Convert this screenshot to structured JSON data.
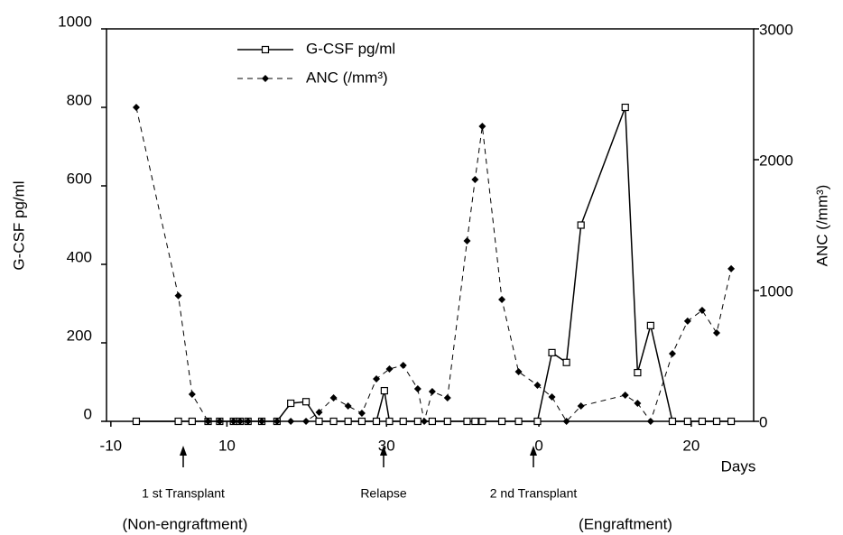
{
  "chart_data": {
    "type": "line",
    "y_label": "G-CSF pg/ml",
    "y2_label": "ANC (/mm³)",
    "x_label": "Days",
    "annotations": [
      "1 st Transplant",
      "Relapse",
      "2 nd Transplant",
      "(Non-engraftment)",
      "(Engraftment)"
    ],
    "xlim": [
      -10.6,
      78.6
    ],
    "xticks": [
      {
        "value": -10,
        "label": "-10"
      },
      {
        "value": 6,
        "label": "10"
      },
      {
        "value": 28,
        "label": "30"
      },
      {
        "value": 49,
        "label": "0"
      },
      {
        "value": 70,
        "label": "20"
      }
    ],
    "ylim": [
      0,
      1000
    ],
    "yticks": [
      0,
      200,
      400,
      600,
      800,
      1000
    ],
    "y2lim": [
      0,
      3000
    ],
    "y2ticks": [
      0,
      1000,
      2000,
      3000
    ],
    "legend": "top-left",
    "series": [
      {
        "name": "G-CSF pg/ml",
        "color": "#000000",
        "marker": "square",
        "dashed": false,
        "x": [
          -6.5,
          -0.7,
          1.2,
          3.4,
          5.0,
          6.9,
          7.8,
          8.9,
          10.8,
          12.9,
          14.8,
          16.9,
          18.7,
          20.7,
          22.7,
          24.6,
          26.6,
          27.7,
          28.4,
          30.3,
          32.3,
          34.3,
          36.4,
          39.1,
          40.2,
          41.2,
          43.9,
          46.2,
          48.8,
          50.8,
          52.8,
          54.8,
          60.9,
          62.6,
          64.4,
          67.4,
          69.5,
          71.5,
          73.5,
          75.5
        ],
        "values": [
          0,
          0,
          0,
          0,
          0,
          0,
          0,
          0,
          0,
          0,
          46,
          50,
          0,
          0,
          0,
          0,
          0,
          78,
          0,
          0,
          0,
          0,
          0,
          0,
          0,
          0,
          0,
          0,
          0,
          175,
          150,
          500,
          800,
          124,
          244,
          0,
          0,
          0,
          0,
          0
        ]
      },
      {
        "name": "ANC (/mm³)",
        "color": "#000000",
        "marker": "diamond",
        "dashed": true,
        "axis": "y2",
        "x": [
          -6.5,
          -0.7,
          1.2,
          3.4,
          5.0,
          6.9,
          7.8,
          8.9,
          10.8,
          12.9,
          14.8,
          16.9,
          18.7,
          20.7,
          22.7,
          24.6,
          26.6,
          28.4,
          30.3,
          32.3,
          33.2,
          34.3,
          36.4,
          39.1,
          40.2,
          41.2,
          43.9,
          46.2,
          48.8,
          50.8,
          52.8,
          54.8,
          60.9,
          62.6,
          64.4,
          67.4,
          69.5,
          71.5,
          73.5,
          75.5
        ],
        "values": [
          2400,
          960,
          207,
          0,
          0,
          0,
          0,
          0,
          0,
          0,
          0,
          0,
          69,
          179,
          117,
          62,
          324,
          400,
          428,
          248,
          0,
          228,
          179,
          1379,
          1848,
          2255,
          931,
          379,
          276,
          186,
          0,
          117,
          200,
          138,
          0,
          517,
          766,
          848,
          676,
          1166
        ]
      }
    ]
  }
}
